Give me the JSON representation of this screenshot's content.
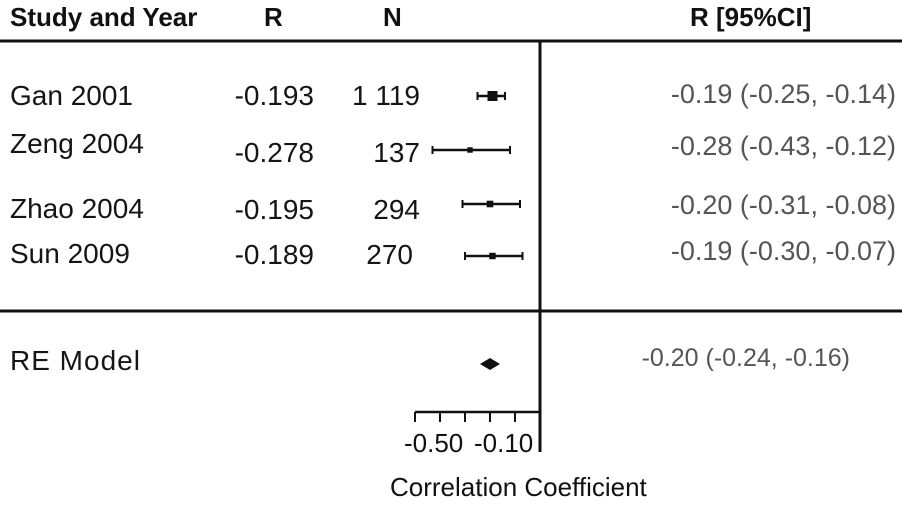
{
  "headers": {
    "study": "Study and Year",
    "r": "R",
    "n": "N",
    "ci": "R [95%CI]"
  },
  "studies": [
    {
      "label": "Gan 2001",
      "r": "-0.193",
      "n": "1 119",
      "ci_text": "-0.19 (-0.25, -0.14)"
    },
    {
      "label": "Zeng 2004",
      "r": "-0.278",
      "n": "137",
      "ci_text": "-0.28 (-0.43, -0.12)"
    },
    {
      "label": "Zhao 2004",
      "r": "-0.195",
      "n": "294",
      "ci_text": "-0.20 (-0.31, -0.08)"
    },
    {
      "label": "Sun 2009",
      "r": "-0.189",
      "n": "270",
      "ci_text": "-0.19 (-0.30, -0.07)"
    }
  ],
  "summary": {
    "label": "RE Model",
    "ci_text": "-0.20 (-0.24, -0.16)"
  },
  "axis": {
    "tick_labels": [
      "-0.50",
      "-0.10"
    ],
    "xlabel": "Correlation Coefficient"
  },
  "chart_data": {
    "type": "forest",
    "xlabel": "Correlation Coefficient",
    "xlim": [
      -0.5,
      0.0
    ],
    "xticks": [
      -0.5,
      -0.4,
      -0.3,
      -0.2,
      -0.1,
      0.0
    ],
    "xtick_labels": [
      "-0.50",
      "-0.10"
    ],
    "reference_line": 0.0,
    "studies": [
      {
        "name": "Gan 2001",
        "estimate": -0.19,
        "lower": -0.25,
        "upper": -0.14,
        "n": 1119
      },
      {
        "name": "Zeng 2004",
        "estimate": -0.28,
        "lower": -0.43,
        "upper": -0.12,
        "n": 137
      },
      {
        "name": "Zhao 2004",
        "estimate": -0.2,
        "lower": -0.31,
        "upper": -0.08,
        "n": 294
      },
      {
        "name": "Sun 2009",
        "estimate": -0.19,
        "lower": -0.3,
        "upper": -0.07,
        "n": 270
      }
    ],
    "summary": {
      "name": "RE Model",
      "estimate": -0.2,
      "lower": -0.24,
      "upper": -0.16
    }
  }
}
